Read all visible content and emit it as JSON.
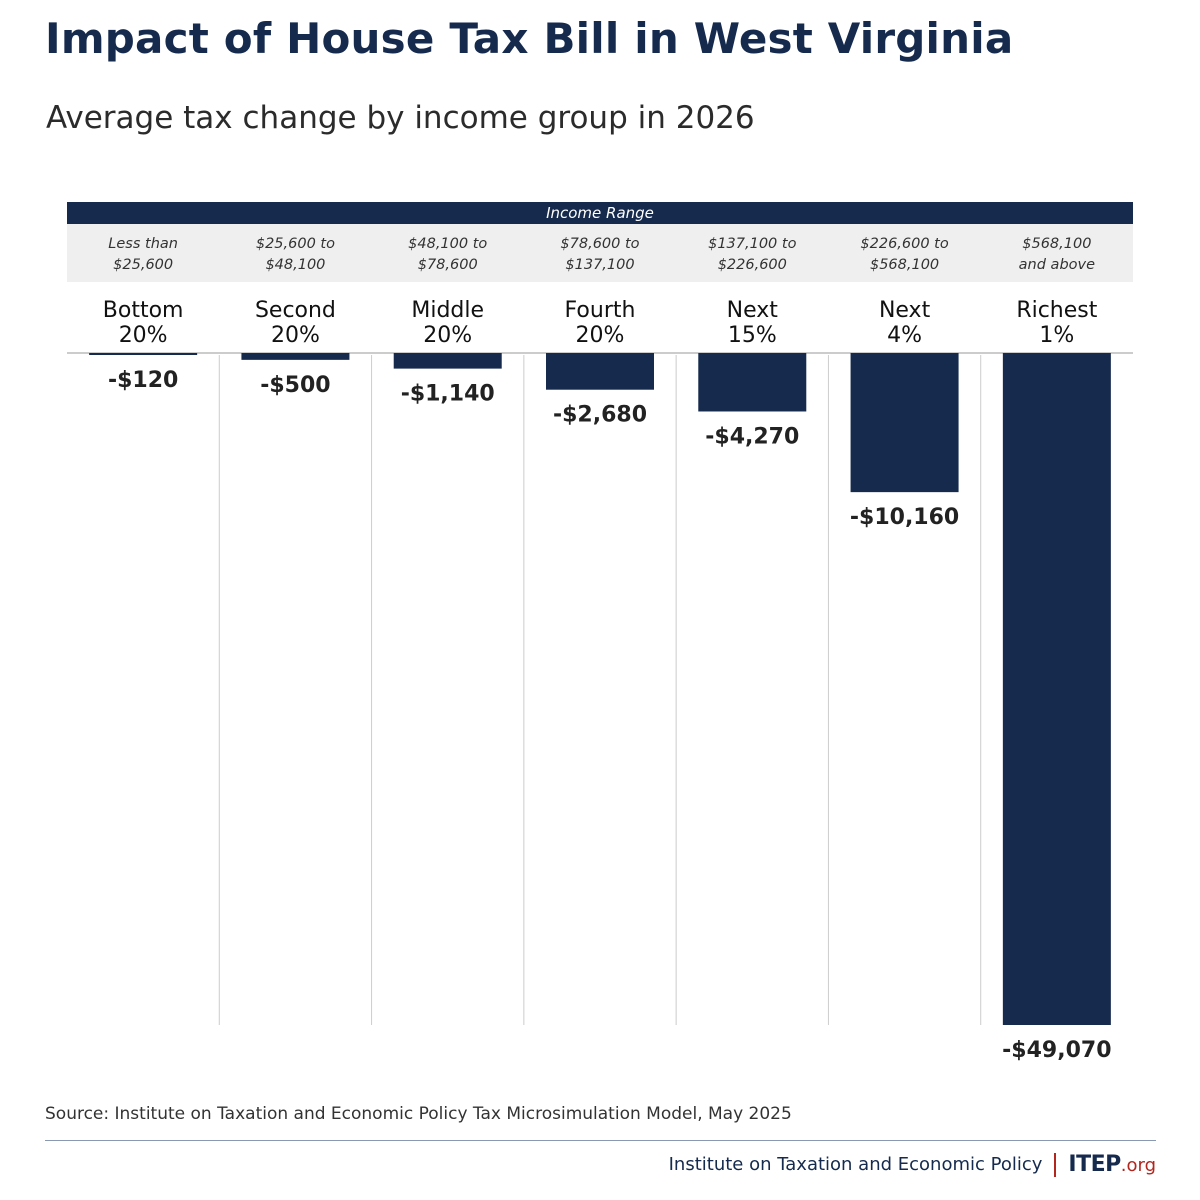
{
  "title": "Impact of House Tax Bill in West Virginia",
  "subtitle": "Average tax change by income group in 2026",
  "source": "Source: Institute on Taxation and Economic Policy Tax Microsimulation Model, May 2025",
  "footer": {
    "org_name": "Institute on Taxation and Economic Policy",
    "logo_main": "ITEP",
    "logo_suffix": ".org"
  },
  "colors": {
    "navy": "#152a4d",
    "band_bg": "#efefef",
    "accent_red": "#b3261e"
  },
  "chart_data": {
    "type": "bar",
    "header_label": "Income Range",
    "categories": [
      {
        "group": [
          "Bottom",
          "20%"
        ],
        "range": [
          "Less than",
          "$25,600"
        ]
      },
      {
        "group": [
          "Second",
          "20%"
        ],
        "range": [
          "$25,600 to",
          "$48,100"
        ]
      },
      {
        "group": [
          "Middle",
          "20%"
        ],
        "range": [
          "$48,100 to",
          "$78,600"
        ]
      },
      {
        "group": [
          "Fourth",
          "20%"
        ],
        "range": [
          "$78,600 to",
          "$137,100"
        ]
      },
      {
        "group": [
          "Next",
          "15%"
        ],
        "range": [
          "$137,100 to",
          "$226,600"
        ]
      },
      {
        "group": [
          "Next",
          "4%"
        ],
        "range": [
          "$226,600 to",
          "$568,100"
        ]
      },
      {
        "group": [
          "Richest",
          "1%"
        ],
        "range": [
          "$568,100",
          "and above"
        ]
      }
    ],
    "values": [
      -120,
      -500,
      -1140,
      -2680,
      -4270,
      -10160,
      -49070
    ],
    "labels": [
      "-$120",
      "-$500",
      "-$1,140",
      "-$2,680",
      "-$4,270",
      "-$10,160",
      "-$49,070"
    ],
    "ylim": [
      -49070,
      0
    ],
    "grid": false
  }
}
